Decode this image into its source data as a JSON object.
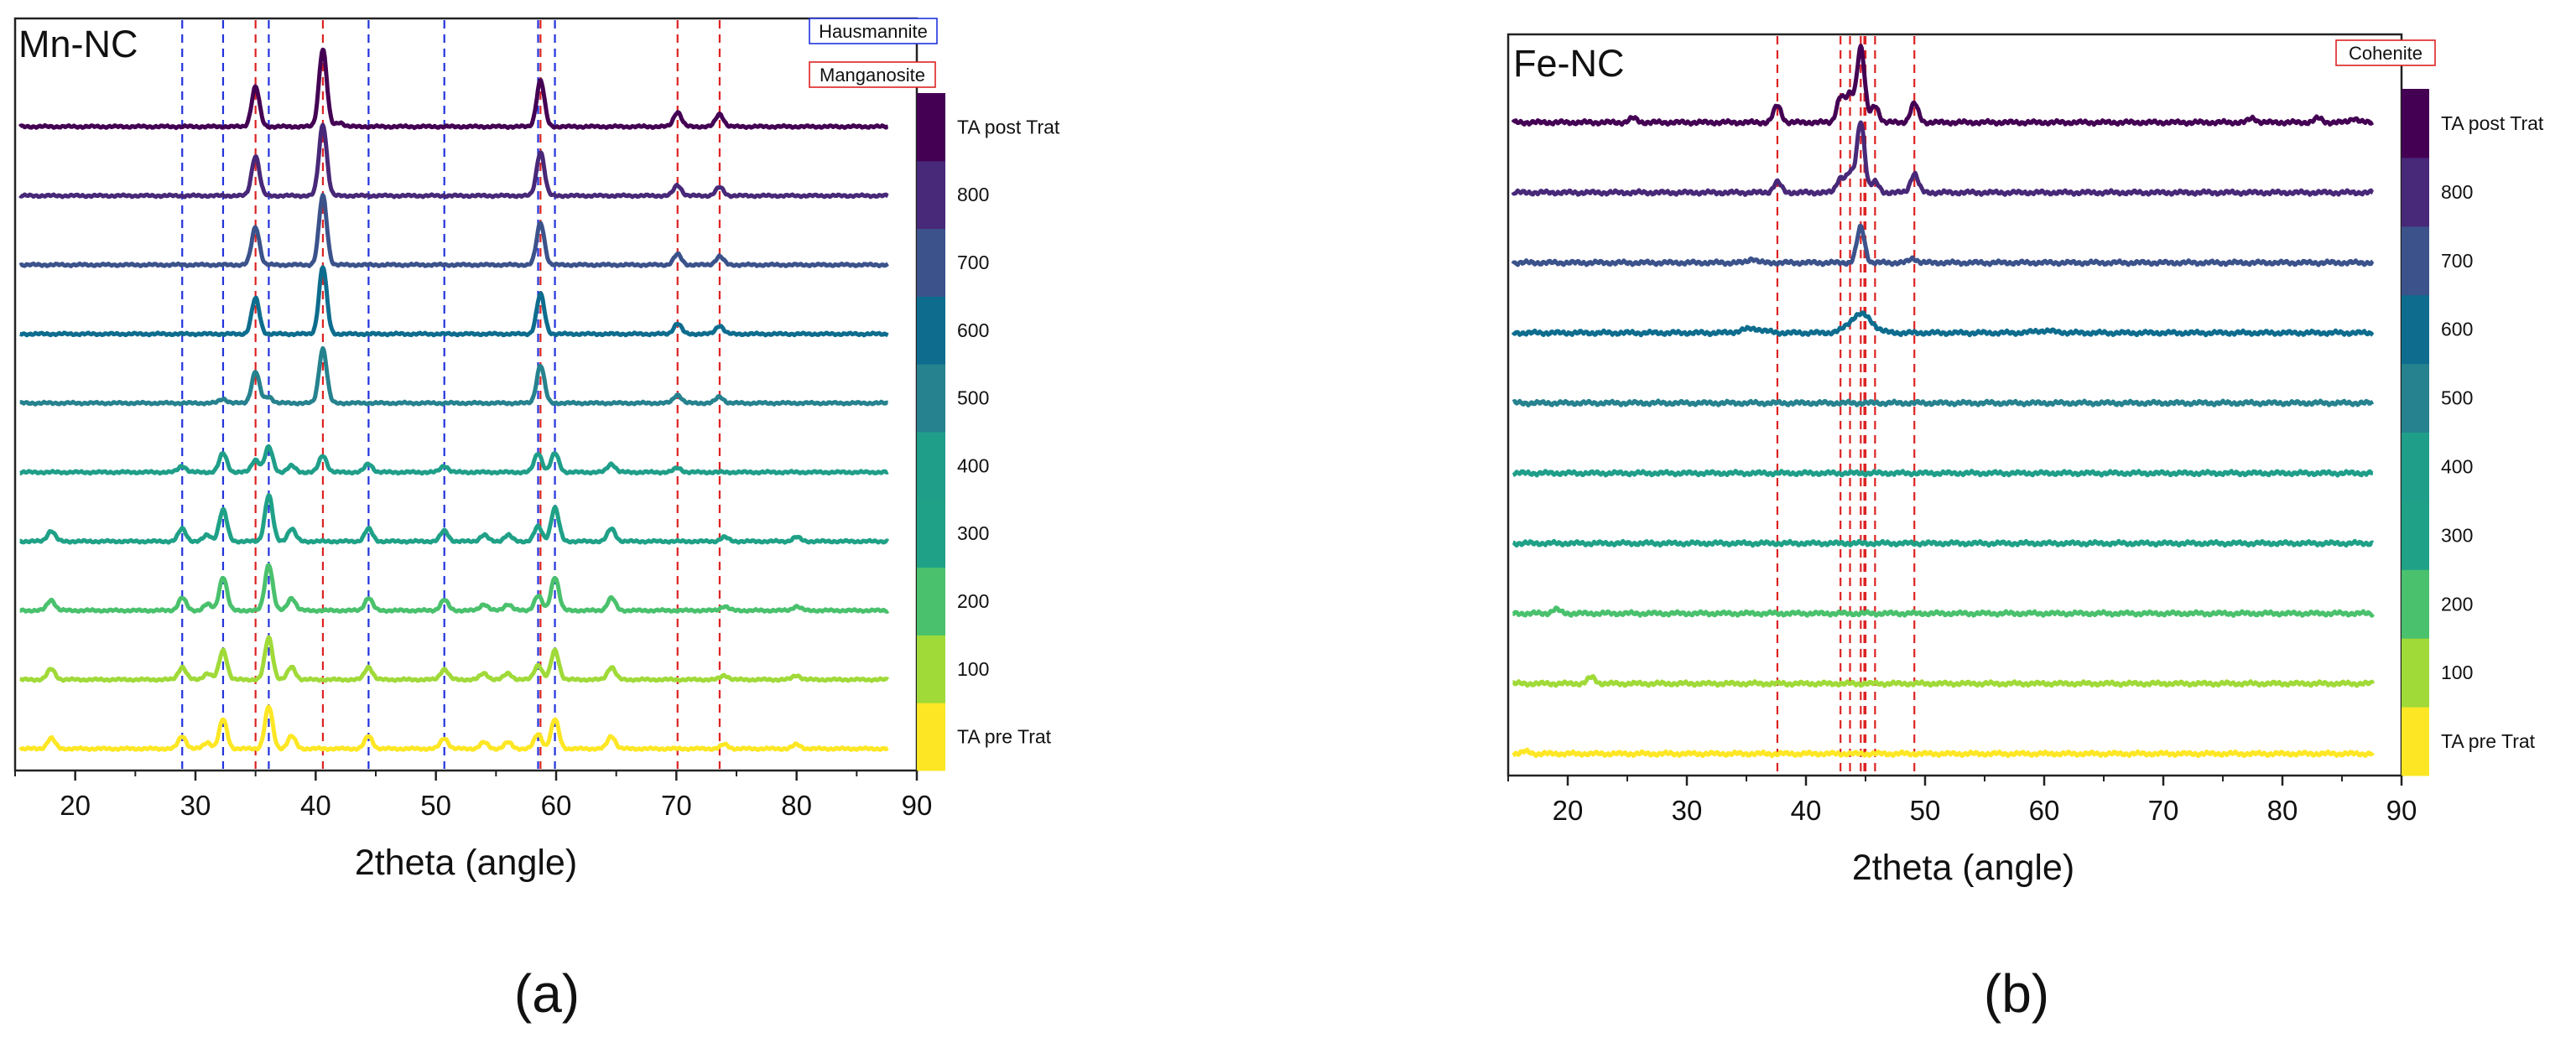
{
  "chart_data": [
    {
      "panel_label": "(a)",
      "type": "line",
      "title": "Mn-NC",
      "xlabel": "2theta (angle)",
      "ylabel": "",
      "xlim": [
        15,
        90
      ],
      "x_ticks": [
        20,
        30,
        40,
        50,
        60,
        70,
        80,
        90
      ],
      "stack_order_bottom_to_top": [
        "TA pre Trat",
        "100",
        "200",
        "300",
        "400",
        "500",
        "600",
        "700",
        "800",
        "TA post Trat"
      ],
      "colorbar_labels": [
        "TA pre Trat",
        "100",
        "200",
        "300",
        "400",
        "500",
        "600",
        "700",
        "800",
        "TA post Trat"
      ],
      "legend": [
        {
          "label": "Hausmannite",
          "color": "#2233dd"
        },
        {
          "label": "Manganosite",
          "color": "#dd2222"
        }
      ],
      "reference_lines": {
        "Hausmannite": [
          28.9,
          32.3,
          36.1,
          44.4,
          50.7,
          58.5,
          59.9
        ],
        "Manganosite": [
          35.0,
          40.6,
          58.7,
          70.1,
          73.6
        ]
      },
      "peaks": {
        "TA pre Trat": [
          [
            18.0,
            0.25
          ],
          [
            28.9,
            0.3
          ],
          [
            31.0,
            0.15
          ],
          [
            32.3,
            0.7
          ],
          [
            36.1,
            1.0
          ],
          [
            38.0,
            0.3
          ],
          [
            44.4,
            0.3
          ],
          [
            50.7,
            0.25
          ],
          [
            54.0,
            0.15
          ],
          [
            56.0,
            0.15
          ],
          [
            58.5,
            0.35
          ],
          [
            59.9,
            0.7
          ],
          [
            64.6,
            0.3
          ],
          [
            74.0,
            0.1
          ],
          [
            80.0,
            0.1
          ]
        ],
        "100": [
          [
            18.0,
            0.25
          ],
          [
            28.9,
            0.3
          ],
          [
            31.0,
            0.15
          ],
          [
            32.3,
            0.7
          ],
          [
            36.1,
            1.0
          ],
          [
            38.0,
            0.3
          ],
          [
            44.4,
            0.3
          ],
          [
            50.7,
            0.25
          ],
          [
            54.0,
            0.15
          ],
          [
            56.0,
            0.15
          ],
          [
            58.5,
            0.35
          ],
          [
            59.9,
            0.7
          ],
          [
            64.6,
            0.3
          ],
          [
            74.0,
            0.1
          ],
          [
            80.0,
            0.1
          ]
        ],
        "200": [
          [
            18.0,
            0.25
          ],
          [
            28.9,
            0.3
          ],
          [
            31.0,
            0.15
          ],
          [
            32.3,
            0.8
          ],
          [
            36.1,
            1.1
          ],
          [
            38.0,
            0.3
          ],
          [
            44.4,
            0.3
          ],
          [
            50.7,
            0.25
          ],
          [
            54.0,
            0.15
          ],
          [
            56.0,
            0.15
          ],
          [
            58.5,
            0.35
          ],
          [
            59.9,
            0.8
          ],
          [
            64.6,
            0.3
          ],
          [
            74.0,
            0.1
          ],
          [
            80.0,
            0.1
          ]
        ],
        "300": [
          [
            18.0,
            0.25
          ],
          [
            28.9,
            0.3
          ],
          [
            31.0,
            0.15
          ],
          [
            32.3,
            0.75
          ],
          [
            36.1,
            1.1
          ],
          [
            38.0,
            0.3
          ],
          [
            44.4,
            0.3
          ],
          [
            50.7,
            0.25
          ],
          [
            54.0,
            0.15
          ],
          [
            56.0,
            0.15
          ],
          [
            58.5,
            0.35
          ],
          [
            59.9,
            0.8
          ],
          [
            64.6,
            0.3
          ],
          [
            74.0,
            0.1
          ],
          [
            80.0,
            0.1
          ]
        ],
        "400": [
          [
            28.9,
            0.15
          ],
          [
            32.3,
            0.45
          ],
          [
            35.0,
            0.3
          ],
          [
            36.1,
            0.6
          ],
          [
            38.0,
            0.15
          ],
          [
            40.6,
            0.4
          ],
          [
            44.4,
            0.2
          ],
          [
            50.7,
            0.15
          ],
          [
            58.5,
            0.45
          ],
          [
            59.9,
            0.45
          ],
          [
            64.6,
            0.2
          ],
          [
            70.1,
            0.1
          ]
        ],
        "500": [
          [
            32.3,
            0.1
          ],
          [
            35.0,
            0.75
          ],
          [
            36.1,
            0.15
          ],
          [
            40.6,
            1.3
          ],
          [
            58.7,
            0.9
          ],
          [
            70.1,
            0.2
          ],
          [
            73.6,
            0.15
          ]
        ],
        "600": [
          [
            35.0,
            0.85
          ],
          [
            40.6,
            1.6
          ],
          [
            58.7,
            0.95
          ],
          [
            70.1,
            0.25
          ],
          [
            73.6,
            0.2
          ]
        ],
        "700": [
          [
            35.0,
            0.9
          ],
          [
            40.6,
            1.65
          ],
          [
            58.7,
            1.0
          ],
          [
            70.1,
            0.25
          ],
          [
            73.6,
            0.2
          ]
        ],
        "800": [
          [
            35.0,
            0.95
          ],
          [
            40.6,
            1.7
          ],
          [
            58.7,
            1.05
          ],
          [
            70.1,
            0.25
          ],
          [
            73.6,
            0.2
          ]
        ],
        "TA post Trat": [
          [
            35.0,
            0.95
          ],
          [
            40.6,
            1.85
          ],
          [
            42.0,
            0.1
          ],
          [
            58.7,
            1.1
          ],
          [
            70.1,
            0.35
          ],
          [
            73.6,
            0.3
          ]
        ]
      }
    },
    {
      "panel_label": "(b)",
      "type": "line",
      "title": "Fe-NC",
      "xlabel": "2theta (angle)",
      "ylabel": "",
      "xlim": [
        15,
        90
      ],
      "x_ticks": [
        20,
        30,
        40,
        50,
        60,
        70,
        80,
        90
      ],
      "stack_order_bottom_to_top": [
        "TA pre Trat",
        "100",
        "200",
        "300",
        "400",
        "500",
        "600",
        "700",
        "800",
        "TA post Trat"
      ],
      "colorbar_labels": [
        "TA pre Trat",
        "100",
        "200",
        "300",
        "400",
        "500",
        "600",
        "700",
        "800",
        "TA post Trat"
      ],
      "legend": [
        {
          "label": "Cohenite",
          "color": "#dd2222"
        }
      ],
      "reference_lines": {
        "Cohenite": [
          37.6,
          42.9,
          43.7,
          44.6,
          44.9,
          45.0,
          45.8,
          49.1
        ]
      },
      "peaks": {
        "TA pre Trat": [
          [
            16.5,
            0.05
          ]
        ],
        "100": [
          [
            22.0,
            0.15
          ]
        ],
        "200": [
          [
            19.0,
            0.1
          ]
        ],
        "300": [],
        "400": [],
        "500": [],
        "600": [
          [
            35.5,
            0.1
          ],
          [
            44.6,
            0.45
          ],
          [
            60.0,
            0.05
          ]
        ],
        "700": [
          [
            35.5,
            0.1
          ],
          [
            44.6,
            0.85
          ],
          [
            49.0,
            0.1
          ]
        ],
        "800": [
          [
            37.6,
            0.25
          ],
          [
            42.9,
            0.35
          ],
          [
            43.7,
            0.45
          ],
          [
            44.6,
            1.7
          ],
          [
            45.8,
            0.25
          ],
          [
            49.1,
            0.45
          ]
        ],
        "TA post Trat": [
          [
            25.5,
            0.1
          ],
          [
            37.6,
            0.4
          ],
          [
            42.9,
            0.6
          ],
          [
            43.7,
            0.65
          ],
          [
            44.6,
            1.8
          ],
          [
            45.8,
            0.4
          ],
          [
            49.1,
            0.45
          ],
          [
            77.5,
            0.1
          ],
          [
            83.0,
            0.1
          ],
          [
            86.0,
            0.1
          ]
        ]
      }
    }
  ]
}
